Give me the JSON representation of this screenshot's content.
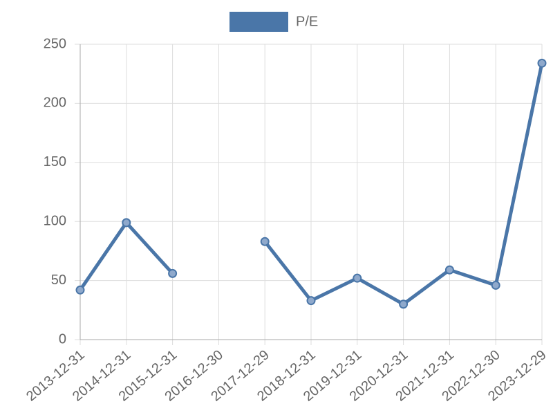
{
  "chart_data": {
    "type": "line",
    "categories": [
      "2013-12-31",
      "2014-12-31",
      "2015-12-31",
      "2016-12-30",
      "2017-12-29",
      "2018-12-31",
      "2019-12-31",
      "2020-12-31",
      "2021-12-31",
      "2022-12-30",
      "2023-12-29"
    ],
    "series": [
      {
        "name": "P/E",
        "color": "#4a76a8",
        "values": [
          42,
          99,
          56,
          null,
          83,
          33,
          52,
          30,
          59,
          46,
          234
        ]
      }
    ],
    "ylim": [
      0,
      250
    ],
    "yticks": [
      0,
      50,
      100,
      150,
      200,
      250
    ],
    "grid": true,
    "legend": "top"
  }
}
